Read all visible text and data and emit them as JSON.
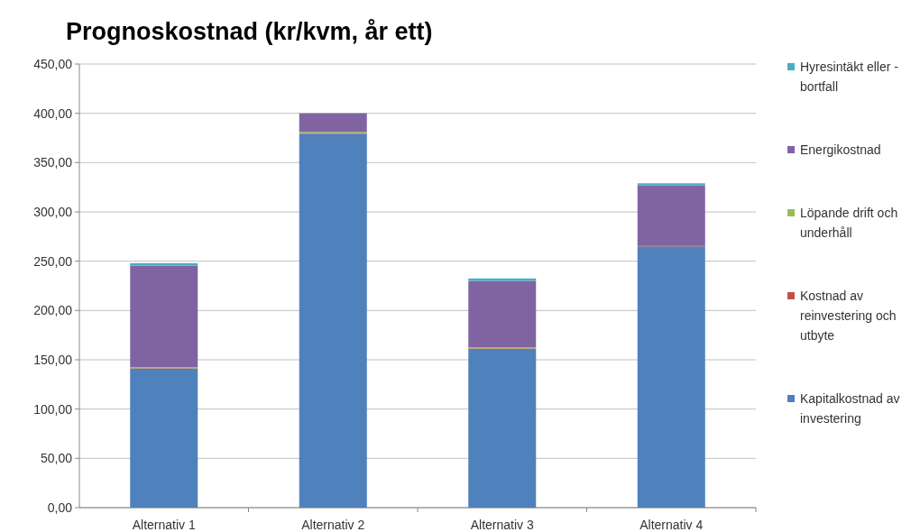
{
  "chart_data": {
    "type": "bar",
    "title": "Prognoskostnad (kr/kvm, år ett)",
    "stacked": true,
    "categories": [
      "Alternativ 1",
      "Alternativ 2",
      "Alternativ 3",
      "Alternativ 4"
    ],
    "series": [
      {
        "name": "Kapitalkostnad av investering",
        "color": "#4f81bd",
        "values": [
          141,
          379,
          161,
          265
        ]
      },
      {
        "name": "Kostnad av reinvestering och utbyte",
        "color": "#c0504d",
        "values": [
          0.5,
          0.5,
          0.5,
          1
        ]
      },
      {
        "name": "Löpande drift och underhåll",
        "color": "#9bbb59",
        "values": [
          1,
          1.5,
          1,
          null
        ]
      },
      {
        "name": "Energikostnad",
        "color": "#8064a2",
        "values": [
          103,
          19,
          67.5,
          61
        ]
      },
      {
        "name": "Hyresintäkt eller - bortfall",
        "color": "#4bacc6",
        "values": [
          2.5,
          0,
          2.5,
          2
        ]
      }
    ],
    "ylim": [
      0,
      450
    ],
    "yticks": [
      {
        "value": 0,
        "label": "0,00"
      },
      {
        "value": 50,
        "label": "50,00"
      },
      {
        "value": 100,
        "label": "100,00"
      },
      {
        "value": 150,
        "label": "150,00"
      },
      {
        "value": 200,
        "label": "200,00"
      },
      {
        "value": 250,
        "label": "250,00"
      },
      {
        "value": 300,
        "label": "300,00"
      },
      {
        "value": 350,
        "label": "350,00"
      },
      {
        "value": 400,
        "label": "400,00"
      },
      {
        "value": 450,
        "label": "450,00"
      }
    ],
    "grid": "y",
    "legend": "right"
  }
}
